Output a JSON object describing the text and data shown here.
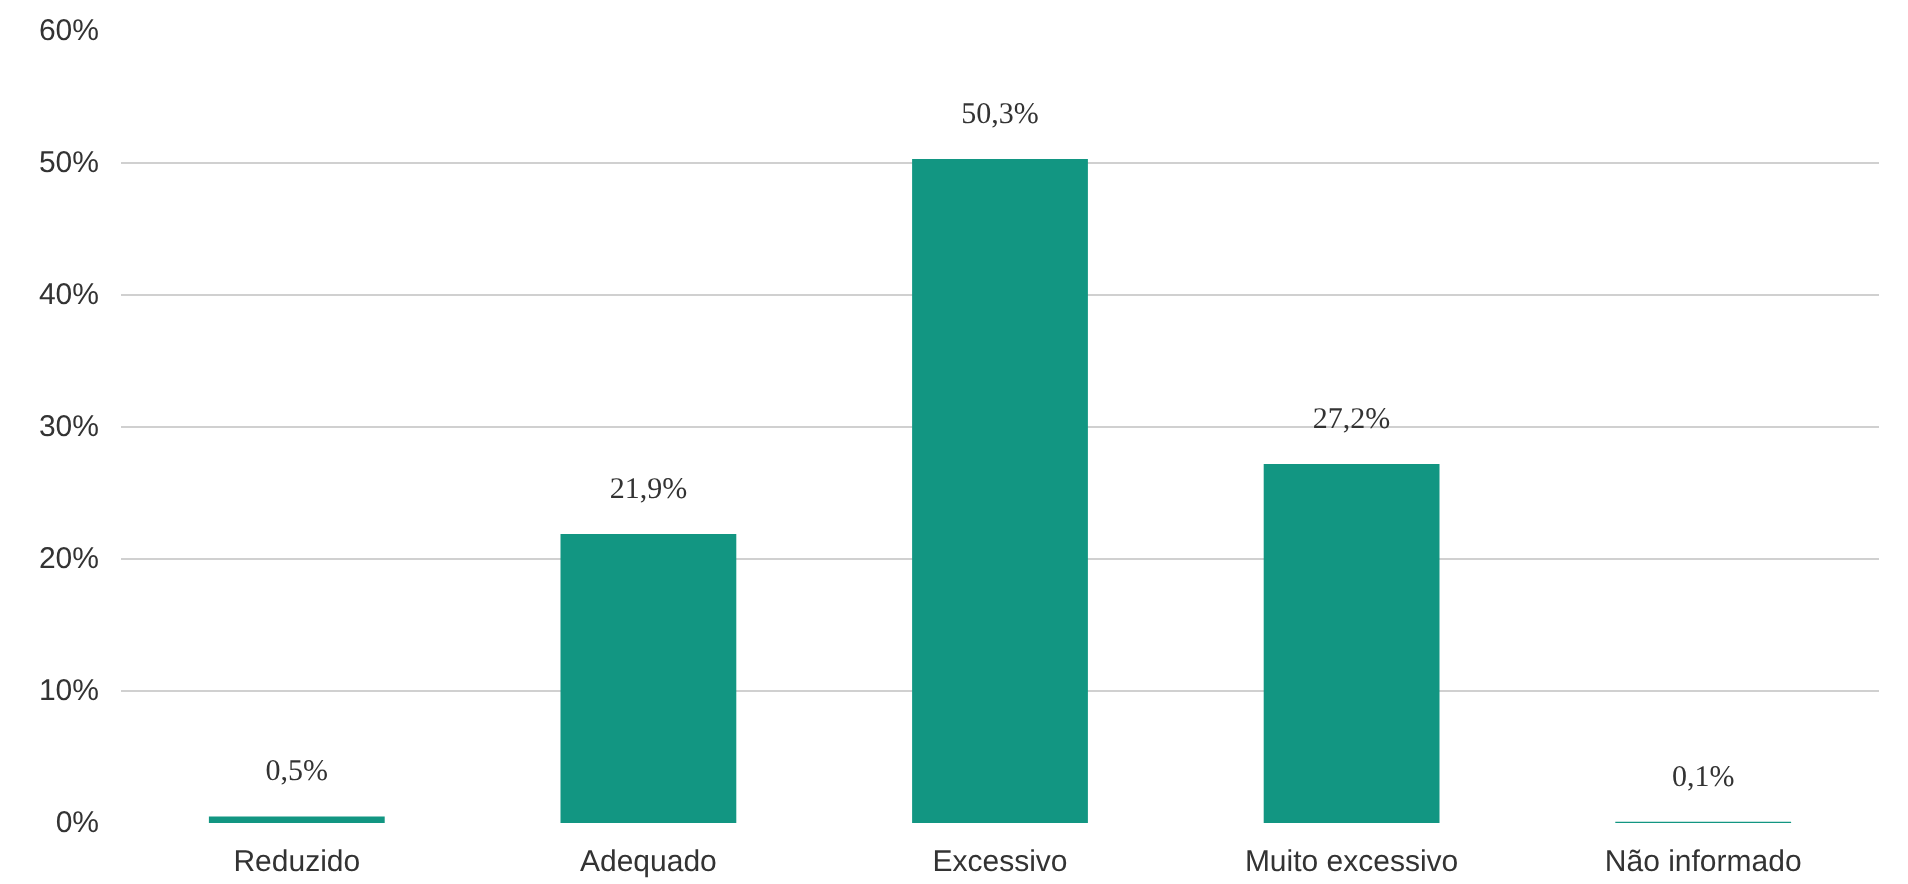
{
  "chart_data": {
    "type": "bar",
    "categories": [
      "Reduzido",
      "Adequado",
      "Excessivo",
      "Muito excessivo",
      "Não informado"
    ],
    "values": [
      0.5,
      21.9,
      50.3,
      27.2,
      0.1
    ],
    "value_labels": [
      "0,5%",
      "21,9%",
      "50,3%",
      "27,2%",
      "0,1%"
    ],
    "color": "#129682",
    "ylim": [
      0,
      60
    ],
    "yticks": [
      {
        "value": 0,
        "label": "0%"
      },
      {
        "value": 10,
        "label": "10%"
      },
      {
        "value": 20,
        "label": "20%"
      },
      {
        "value": 30,
        "label": "30%"
      },
      {
        "value": 40,
        "label": "40%"
      },
      {
        "value": 50,
        "label": "50%"
      },
      {
        "value": 60,
        "label": "60%"
      }
    ],
    "grid": "y"
  }
}
